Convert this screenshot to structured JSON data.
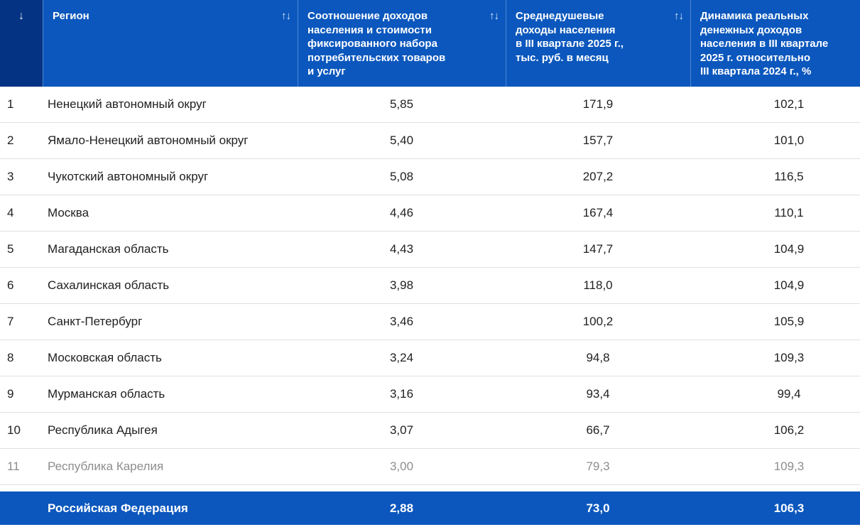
{
  "table": {
    "columns": {
      "rank": {
        "sort_icon": "↓"
      },
      "region": {
        "label": "Регион",
        "sort_icon": "↑↓"
      },
      "ratio": {
        "label": "Соотношение доходов\nнаселения и стоимости\nфиксированного набора\nпотребительских товаров\nи услуг",
        "sort_icon": "↑↓"
      },
      "income": {
        "label": "Среднедушевые\nдоходы населения\nв III квартале 2025 г.,\nтыс. руб. в месяц",
        "sort_icon": "↑↓"
      },
      "dynamics": {
        "label": "Динамика реальных\nденежных доходов\nнаселения в III квартале\n2025 г. относительно\nIII квартала 2024 г., %"
      }
    },
    "rows": [
      {
        "num": "1",
        "region": "Ненецкий автономный округ",
        "ratio": "5,85",
        "income": "171,9",
        "dynamics": "102,1"
      },
      {
        "num": "2",
        "region": "Ямало-Ненецкий автономный округ",
        "ratio": "5,40",
        "income": "157,7",
        "dynamics": "101,0"
      },
      {
        "num": "3",
        "region": "Чукотский автономный округ",
        "ratio": "5,08",
        "income": "207,2",
        "dynamics": "116,5"
      },
      {
        "num": "4",
        "region": "Москва",
        "ratio": "4,46",
        "income": "167,4",
        "dynamics": "110,1"
      },
      {
        "num": "5",
        "region": "Магаданская область",
        "ratio": "4,43",
        "income": "147,7",
        "dynamics": "104,9"
      },
      {
        "num": "6",
        "region": "Сахалинская область",
        "ratio": "3,98",
        "income": "118,0",
        "dynamics": "104,9"
      },
      {
        "num": "7",
        "region": "Санкт-Петербург",
        "ratio": "3,46",
        "income": "100,2",
        "dynamics": "105,9"
      },
      {
        "num": "8",
        "region": "Московская область",
        "ratio": "3,24",
        "income": "94,8",
        "dynamics": "109,3"
      },
      {
        "num": "9",
        "region": "Мурманская область",
        "ratio": "3,16",
        "income": "93,4",
        "dynamics": "99,4"
      },
      {
        "num": "10",
        "region": "Республика Адыгея",
        "ratio": "3,07",
        "income": "66,7",
        "dynamics": "106,2"
      },
      {
        "num": "11",
        "region": "Республика Карелия",
        "ratio": "3,00",
        "income": "79,3",
        "dynamics": "109,3",
        "muted": true
      }
    ],
    "footer": {
      "label": "Российская Федерация",
      "ratio": "2,88",
      "income": "73,0",
      "dynamics": "106,3"
    },
    "colors": {
      "header_bg": "#0b57bd",
      "rank_header_bg": "#053383",
      "header_divider": "#4e86d3",
      "row_border": "#e0e0e0",
      "body_text": "#212121",
      "muted_text": "#8d8d8d",
      "footer_bg": "#0b57bd"
    }
  }
}
